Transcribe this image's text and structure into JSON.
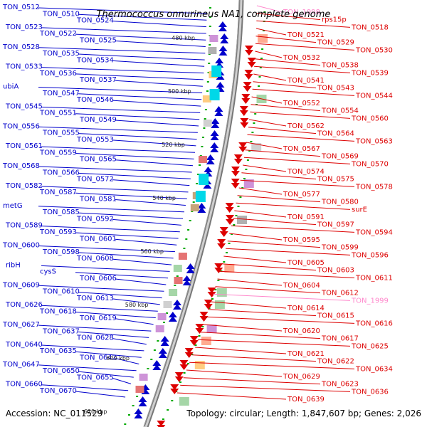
{
  "title": "Thermococcus onnurineus NA1, complete genome",
  "footer": {
    "accession": "Accession: NC_011529",
    "topology": "Topology: circular; Length: 1,847,607 bp; Genes: 2,026"
  },
  "colors": {
    "backbone": "#808080",
    "forward": "#0000cc",
    "reverse": "#dd0000",
    "tick": "#00aa00",
    "pseudo": "#ff88cc"
  },
  "ruler": [
    "480 kbp",
    "500 kbp",
    "520 kbp",
    "540 kbp",
    "560 kbp",
    "580 kbp",
    "600 kbp",
    "620 kbp"
  ],
  "left_labels": [
    "TON_0512",
    "TON_0510",
    "TON_0524",
    "TON_0523",
    "TON_0522",
    "TON_0525",
    "TON_0528",
    "TON_0535",
    "TON_0534",
    "TON_0533",
    "TON_0536",
    "TON_0537",
    "ubiA",
    "TON_0547",
    "TON_0546",
    "TON_0545",
    "TON_0551",
    "TON_0549",
    "TON_0556",
    "TON_0555",
    "TON_0553",
    "TON_0561",
    "TON_0559",
    "TON_0565",
    "TON_0568",
    "TON_0566",
    "TON_0572",
    "TON_0582",
    "TON_0587",
    "TON_0581",
    "metG",
    "TON_0585",
    "TON_0592",
    "TON_0589",
    "TON_0593",
    "TON_0601",
    "TON_0600",
    "TON_0598",
    "TON_0608",
    "ribH",
    "cysS",
    "TON_0606",
    "TON_0609",
    "TON_0610",
    "TON_0613",
    "TON_0626",
    "TON_0618",
    "TON_0619",
    "TON_0627",
    "TON_0637",
    "TON_0628",
    "TON_0640",
    "TON_0635",
    "TON_0642",
    "TON_0647",
    "TON_0650",
    "TON_0655",
    "TON_0660",
    "TON_0670"
  ],
  "right_labels": [
    "TON_1998",
    "rps15p",
    "TON_0518",
    "TON_0521",
    "TON_0529",
    "TON_0530",
    "TON_0532",
    "TON_0538",
    "TON_0539",
    "TON_0541",
    "TON_0543",
    "TON_0544",
    "TON_0552",
    "TON_0554",
    "TON_0560",
    "TON_0562",
    "TON_0564",
    "TON_0563",
    "TON_0567",
    "TON_0569",
    "TON_0570",
    "TON_0574",
    "TON_0575",
    "TON_0578",
    "TON_0577",
    "TON_0580",
    "surE",
    "TON_0591",
    "TON_0597",
    "TON_0594",
    "TON_0595",
    "TON_0599",
    "TON_0596",
    "TON_0605",
    "TON_0603",
    "TON_0611",
    "TON_0604",
    "TON_0612",
    "TON_1999",
    "TON_0614",
    "TON_0615",
    "TON_0616",
    "TON_0620",
    "TON_0617",
    "TON_0625",
    "TON_0621",
    "TON_0622",
    "TON_0634",
    "TON_0629",
    "TON_0623",
    "TON_0636",
    "TON_0639"
  ]
}
